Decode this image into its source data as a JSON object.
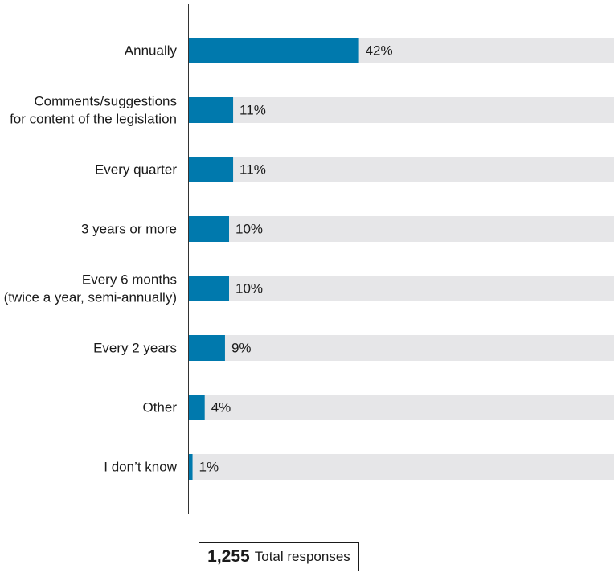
{
  "chart_data": {
    "type": "bar",
    "orientation": "horizontal",
    "categories": [
      "Annually",
      "Comments/suggestions\nfor content of the legislation",
      "Every quarter",
      "3 years or more",
      "Every 6 months\n(twice a year, semi-annually)",
      "Every 2 years",
      "Other",
      "I don’t know"
    ],
    "values": [
      42,
      11,
      11,
      10,
      10,
      9,
      4,
      1
    ],
    "value_labels": [
      "42%",
      "11%",
      "11%",
      "10%",
      "10%",
      "9%",
      "4%",
      "1%"
    ],
    "xlim": [
      0,
      100
    ],
    "colors": {
      "bar": "#0079ad",
      "track": "#e6e6e8",
      "axis": "#333333"
    }
  },
  "total": {
    "number": "1,255",
    "label": "Total responses"
  }
}
